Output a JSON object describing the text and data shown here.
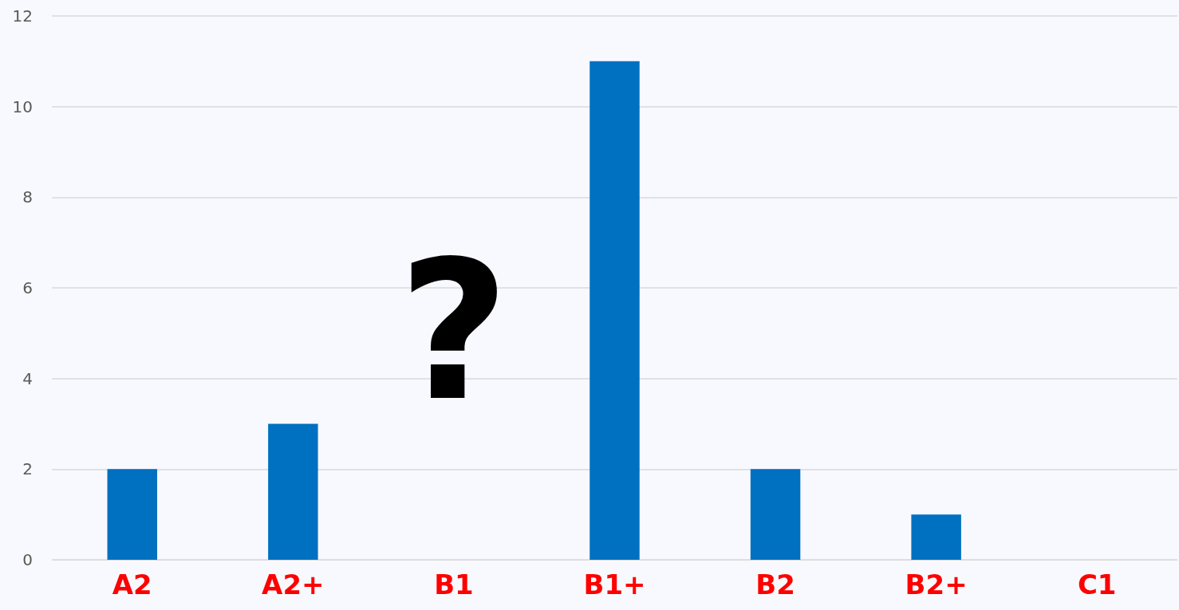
{
  "chart_data": {
    "type": "bar",
    "categories": [
      "A2",
      "A2+",
      "B1",
      "B1+",
      "B2",
      "B2+",
      "C1"
    ],
    "values": [
      2,
      3,
      null,
      11,
      2,
      1,
      0
    ],
    "color": "#0070c0",
    "ylim": [
      0,
      12
    ],
    "yticks": [
      0,
      2,
      4,
      6,
      8,
      10,
      12
    ],
    "grid": "y",
    "annotations": [
      "?"
    ]
  }
}
